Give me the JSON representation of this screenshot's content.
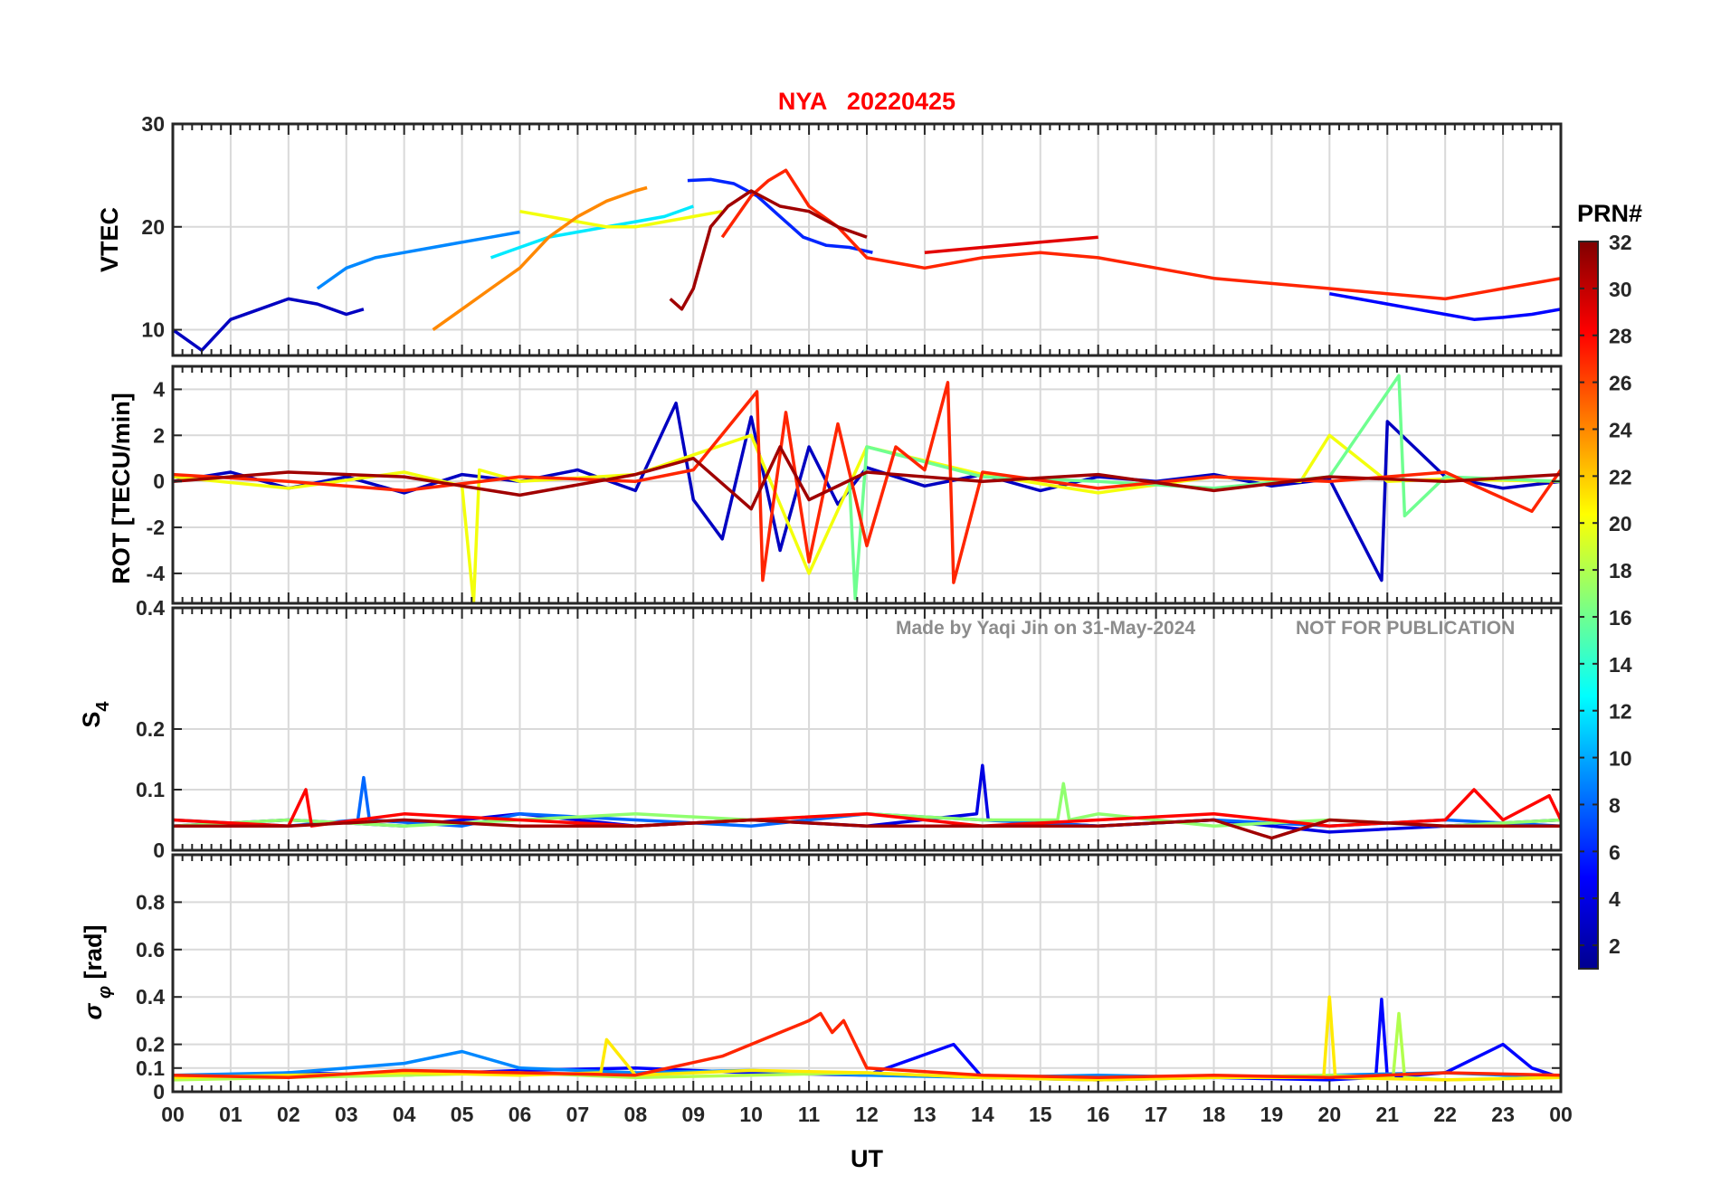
{
  "figure": {
    "title": "NYA   20220425",
    "xlabel": "UT",
    "watermark_left": "Made by Yaqi Jin on 31-May-2024",
    "watermark_right": "NOT FOR PUBLICATION"
  },
  "x_tick_labels": [
    "00",
    "01",
    "02",
    "03",
    "04",
    "05",
    "06",
    "07",
    "08",
    "09",
    "10",
    "11",
    "12",
    "13",
    "14",
    "15",
    "16",
    "17",
    "18",
    "19",
    "20",
    "21",
    "22",
    "23",
    "00"
  ],
  "colorbar": {
    "label": "PRN#",
    "ticks": [
      2,
      4,
      6,
      8,
      10,
      12,
      14,
      16,
      18,
      20,
      22,
      24,
      26,
      28,
      30,
      32
    ],
    "range": [
      1,
      32
    ],
    "colormap": "jet"
  },
  "chart_data": [
    {
      "type": "line",
      "panel": "VTEC",
      "ylabel": "VTEC",
      "xlim": [
        0,
        24
      ],
      "ylim": [
        7.5,
        30
      ],
      "yticks": [
        10,
        20,
        30
      ],
      "grid": true,
      "series": [
        {
          "prn": 3,
          "x": [
            0,
            0.5,
            1,
            1.5,
            2,
            2.5,
            3,
            3.3
          ],
          "y": [
            10,
            8,
            11,
            12,
            13,
            12.5,
            11.5,
            12
          ]
        },
        {
          "prn": 6,
          "x": [
            8.9,
            9.3,
            9.7,
            10.1,
            10.5,
            10.9,
            11.3,
            11.7,
            12.1
          ],
          "y": [
            24.5,
            24.6,
            24.2,
            23,
            21,
            19,
            18.2,
            18,
            17.5
          ]
        },
        {
          "prn": 9,
          "x": [
            2.5,
            3,
            3.5,
            4,
            4.5,
            5,
            5.5,
            6
          ],
          "y": [
            14,
            16,
            17,
            17.5,
            18,
            18.5,
            19,
            19.5
          ]
        },
        {
          "prn": 12,
          "x": [
            5.5,
            6,
            6.5,
            7,
            7.5,
            8,
            8.5,
            9
          ],
          "y": [
            17,
            18,
            19,
            19.5,
            20,
            20.5,
            21,
            22
          ]
        },
        {
          "prn": 20,
          "x": [
            6,
            6.5,
            7,
            7.5,
            8,
            8.5,
            9,
            9.5
          ],
          "y": [
            21.5,
            21,
            20.5,
            20,
            20,
            20.5,
            21,
            21.5
          ]
        },
        {
          "prn": 24,
          "x": [
            4.5,
            5,
            5.5,
            6,
            6.5,
            7,
            7.5,
            8,
            8.2
          ],
          "y": [
            10,
            12,
            14,
            16,
            19,
            21,
            22.5,
            23.5,
            23.8
          ]
        },
        {
          "prn": 27,
          "x": [
            9.5,
            10,
            10.3,
            10.6,
            11,
            11.5,
            12,
            13,
            14,
            15,
            16,
            17,
            18,
            19,
            20,
            21,
            22,
            23,
            24
          ],
          "y": [
            19,
            23,
            24.5,
            25.5,
            22,
            20,
            17,
            16,
            17,
            17.5,
            17,
            16,
            15,
            14.5,
            14,
            13.5,
            13,
            14,
            15
          ]
        },
        {
          "prn": 29,
          "x": [
            13,
            14,
            15,
            16
          ],
          "y": [
            17.5,
            18,
            18.5,
            19
          ]
        },
        {
          "prn": 31,
          "x": [
            8.6,
            8.8,
            9,
            9.3,
            9.6,
            10,
            10.5,
            11,
            11.5,
            12
          ],
          "y": [
            13,
            12,
            14,
            20,
            22,
            23.5,
            22,
            21.5,
            20,
            19
          ]
        },
        {
          "prn": 5,
          "x": [
            20,
            20.5,
            21,
            21.5,
            22,
            22.5,
            23,
            23.5,
            24
          ],
          "y": [
            13.5,
            13,
            12.5,
            12,
            11.5,
            11,
            11.2,
            11.5,
            12
          ]
        }
      ]
    },
    {
      "type": "line",
      "panel": "ROT",
      "ylabel": "ROT [TECU/min]",
      "xlim": [
        0,
        24
      ],
      "ylim": [
        -5.3,
        5
      ],
      "yticks": [
        -4,
        -2,
        0,
        2,
        4
      ],
      "grid": true,
      "series": [
        {
          "prn": 3,
          "x": [
            0,
            1,
            2,
            3,
            4,
            5,
            6,
            7,
            8,
            8.7,
            9,
            9.5,
            10,
            10.5,
            11,
            11.5,
            12,
            13,
            14,
            15,
            16,
            17,
            18,
            19,
            20,
            20.9,
            21,
            22,
            23,
            24
          ],
          "y": [
            0,
            0.4,
            -0.3,
            0.2,
            -0.5,
            0.3,
            0,
            0.5,
            -0.4,
            3.4,
            -0.8,
            -2.5,
            2.8,
            -3,
            1.5,
            -1,
            0.6,
            -0.2,
            0.3,
            -0.4,
            0.2,
            0,
            0.3,
            -0.2,
            0.1,
            -4.3,
            2.6,
            0.2,
            -0.3,
            0
          ]
        },
        {
          "prn": 20,
          "x": [
            0,
            2,
            4,
            5,
            5.2,
            5.3,
            6,
            8,
            10,
            11,
            12,
            14,
            16,
            18,
            19.5,
            20,
            21,
            22,
            24
          ],
          "y": [
            0.2,
            -0.3,
            0.4,
            -0.2,
            -5.3,
            0.5,
            0,
            0.3,
            2,
            -4,
            1.5,
            0.3,
            -0.5,
            0.2,
            0,
            2,
            0,
            0.1,
            0
          ]
        },
        {
          "prn": 16,
          "x": [
            11.7,
            11.8,
            12,
            14,
            16,
            18,
            20,
            21.2,
            21.3,
            22,
            24
          ],
          "y": [
            0,
            -5.1,
            1.5,
            0.2,
            0,
            -0.3,
            0.2,
            4.6,
            -1.5,
            0.2,
            0
          ]
        },
        {
          "prn": 27,
          "x": [
            0,
            2,
            4,
            6,
            8,
            9,
            10.1,
            10.2,
            10.6,
            11,
            11.5,
            12,
            12.5,
            13,
            13.4,
            13.5,
            14,
            16,
            18,
            20,
            22,
            23.5,
            24
          ],
          "y": [
            0.3,
            0,
            -0.4,
            0.2,
            0,
            0.5,
            3.9,
            -4.3,
            3,
            -3.5,
            2.5,
            -2.8,
            1.5,
            0.5,
            4.3,
            -4.4,
            0.4,
            -0.3,
            0.2,
            0,
            0.4,
            -1.3,
            0.5
          ]
        },
        {
          "prn": 31,
          "x": [
            0,
            2,
            4,
            6,
            8,
            9,
            10,
            10.5,
            11,
            12,
            14,
            16,
            18,
            20,
            22,
            24
          ],
          "y": [
            0,
            0.4,
            0.2,
            -0.6,
            0.3,
            1,
            -1.2,
            1.5,
            -0.8,
            0.4,
            0,
            0.3,
            -0.4,
            0.2,
            0,
            0.3
          ]
        }
      ]
    },
    {
      "type": "line",
      "panel": "S4",
      "ylabel": "S4",
      "xlim": [
        0,
        24
      ],
      "ylim": [
        0,
        0.4
      ],
      "yticks": [
        0,
        0.1,
        0.2,
        0.4
      ],
      "grid": true,
      "series": [
        {
          "prn": 4,
          "x": [
            0,
            2,
            4,
            6,
            8,
            10,
            12,
            13.9,
            14,
            14.1,
            16,
            18,
            20,
            22,
            24
          ],
          "y": [
            0.04,
            0.05,
            0.04,
            0.06,
            0.04,
            0.05,
            0.04,
            0.06,
            0.14,
            0.05,
            0.04,
            0.05,
            0.03,
            0.04,
            0.05
          ]
        },
        {
          "prn": 8,
          "x": [
            0,
            2,
            3.2,
            3.3,
            3.4,
            5,
            6,
            8,
            10,
            12,
            14,
            16,
            18,
            20,
            22,
            24
          ],
          "y": [
            0.05,
            0.04,
            0.05,
            0.12,
            0.05,
            0.04,
            0.06,
            0.05,
            0.04,
            0.06,
            0.05,
            0.04,
            0.05,
            0.04,
            0.05,
            0.04
          ]
        },
        {
          "prn": 17,
          "x": [
            0,
            2,
            4,
            6,
            8,
            10,
            12,
            14,
            15.3,
            15.4,
            15.5,
            16,
            18,
            20,
            22,
            24
          ],
          "y": [
            0.04,
            0.05,
            0.04,
            0.05,
            0.06,
            0.05,
            0.06,
            0.05,
            0.05,
            0.11,
            0.05,
            0.06,
            0.04,
            0.05,
            0.04,
            0.05
          ]
        },
        {
          "prn": 28,
          "x": [
            0,
            2,
            2.3,
            2.4,
            4,
            6,
            8,
            10,
            12,
            14,
            16,
            18,
            20,
            22,
            22.5,
            23,
            23.8,
            24
          ],
          "y": [
            0.05,
            0.04,
            0.1,
            0.04,
            0.06,
            0.05,
            0.04,
            0.05,
            0.06,
            0.04,
            0.05,
            0.06,
            0.04,
            0.05,
            0.1,
            0.05,
            0.09,
            0.05
          ]
        },
        {
          "prn": 31,
          "x": [
            0,
            2,
            4,
            6,
            8,
            10,
            12,
            14,
            16,
            18,
            19,
            20,
            22,
            24
          ],
          "y": [
            0.04,
            0.04,
            0.05,
            0.04,
            0.04,
            0.05,
            0.04,
            0.04,
            0.04,
            0.05,
            0.02,
            0.05,
            0.04,
            0.04
          ]
        }
      ]
    },
    {
      "type": "line",
      "panel": "sigma_phi",
      "ylabel": "σφ [rad]",
      "xlim": [
        0,
        24
      ],
      "ylim": [
        0,
        1
      ],
      "yticks": [
        0,
        0.1,
        0.2,
        0.4,
        0.6,
        0.8
      ],
      "grid": true,
      "series": [
        {
          "prn": 5,
          "x": [
            0,
            2,
            4,
            6,
            8,
            10,
            12,
            13.5,
            14,
            16,
            18,
            20,
            20.8,
            20.9,
            21,
            22,
            23,
            23.5,
            24
          ],
          "y": [
            0.06,
            0.08,
            0.07,
            0.09,
            0.1,
            0.08,
            0.07,
            0.2,
            0.06,
            0.05,
            0.06,
            0.05,
            0.06,
            0.39,
            0.06,
            0.08,
            0.2,
            0.1,
            0.06
          ]
        },
        {
          "prn": 9,
          "x": [
            0,
            2,
            4,
            5,
            6,
            8,
            10,
            12,
            14,
            16,
            18,
            20,
            22,
            24
          ],
          "y": [
            0.07,
            0.08,
            0.12,
            0.17,
            0.1,
            0.08,
            0.09,
            0.07,
            0.06,
            0.07,
            0.06,
            0.07,
            0.08,
            0.06
          ]
        },
        {
          "prn": 18,
          "x": [
            0,
            2,
            4,
            6,
            8,
            10,
            12,
            14,
            16,
            18,
            20,
            21.1,
            21.2,
            21.3,
            22,
            24
          ],
          "y": [
            0.05,
            0.06,
            0.07,
            0.08,
            0.06,
            0.07,
            0.08,
            0.06,
            0.05,
            0.06,
            0.07,
            0.06,
            0.33,
            0.06,
            0.05,
            0.06
          ]
        },
        {
          "prn": 21,
          "x": [
            0,
            2,
            4,
            6,
            7.4,
            7.5,
            8,
            10,
            12,
            14,
            16,
            18,
            19.9,
            20,
            20.1,
            22,
            24
          ],
          "y": [
            0.06,
            0.07,
            0.08,
            0.07,
            0.08,
            0.22,
            0.07,
            0.09,
            0.08,
            0.06,
            0.05,
            0.06,
            0.06,
            0.4,
            0.06,
            0.05,
            0.06
          ]
        },
        {
          "prn": 27,
          "x": [
            0,
            2,
            4,
            6,
            8,
            9.5,
            10,
            10.5,
            11,
            11.2,
            11.4,
            11.6,
            12,
            14,
            16,
            18,
            20,
            22,
            24
          ],
          "y": [
            0.07,
            0.06,
            0.09,
            0.08,
            0.07,
            0.15,
            0.2,
            0.25,
            0.3,
            0.33,
            0.25,
            0.3,
            0.1,
            0.07,
            0.06,
            0.07,
            0.06,
            0.08,
            0.07
          ]
        }
      ]
    }
  ]
}
